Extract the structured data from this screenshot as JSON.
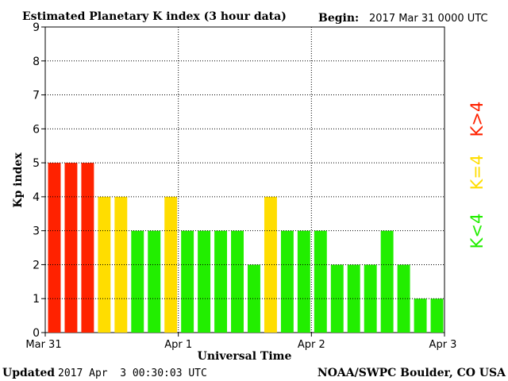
{
  "header": {
    "title": "Estimated Planetary K index (3 hour data)",
    "begin_label": "Begin:",
    "begin_value": "2017 Mar 31 0000 UTC"
  },
  "footer": {
    "updated_label": "Updated",
    "updated_value": "2017 Apr  3 00:30:03 UTC",
    "credit": "NOAA/SWPC Boulder, CO USA"
  },
  "legend": {
    "high": "K>4",
    "equal": "K=4",
    "low": "K<4"
  },
  "colors": {
    "high": "#ff2200",
    "equal": "#ffdd00",
    "low": "#22ee00",
    "grid": "#000000"
  },
  "chart_data": {
    "type": "bar",
    "title": "Estimated Planetary K index (3 hour data)",
    "xlabel": "Universal Time",
    "ylabel": "Kp index",
    "ylim": [
      0,
      9
    ],
    "yticks": [
      0,
      1,
      2,
      3,
      4,
      5,
      6,
      7,
      8,
      9
    ],
    "xlim": [
      "2017-03-31T00:00",
      "2017-04-03T00:00"
    ],
    "xtick_labels": [
      "Mar 31",
      "Apr 1",
      "Apr 2",
      "Apr 3"
    ],
    "bar_interval_hours": 3,
    "grid": true,
    "categories": [
      "2017-03-31T00:00",
      "2017-03-31T03:00",
      "2017-03-31T06:00",
      "2017-03-31T09:00",
      "2017-03-31T12:00",
      "2017-03-31T15:00",
      "2017-03-31T18:00",
      "2017-03-31T21:00",
      "2017-04-01T00:00",
      "2017-04-01T03:00",
      "2017-04-01T06:00",
      "2017-04-01T09:00",
      "2017-04-01T12:00",
      "2017-04-01T15:00",
      "2017-04-01T18:00",
      "2017-04-01T21:00",
      "2017-04-02T00:00",
      "2017-04-02T03:00",
      "2017-04-02T06:00",
      "2017-04-02T09:00",
      "2017-04-02T12:00",
      "2017-04-02T15:00",
      "2017-04-02T18:00",
      "2017-04-02T21:00"
    ],
    "values": [
      5,
      5,
      5,
      4,
      4,
      3,
      3,
      4,
      3,
      3,
      3,
      3,
      2,
      4,
      3,
      3,
      3,
      2,
      2,
      2,
      3,
      2,
      1,
      1
    ]
  }
}
